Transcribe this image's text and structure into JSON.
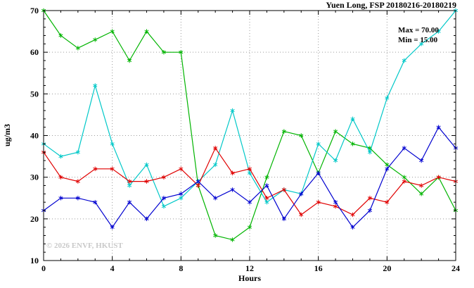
{
  "title": "Yuen Long, FSP 20180216-20180219",
  "annotation": {
    "max_label": "Max = 70.00",
    "min_label": "Min = 15.00"
  },
  "watermark": "© 2026 ENVF, HKUST",
  "chart_data": {
    "type": "line",
    "title": "Yuen Long, FSP 20180216-20180219",
    "xlabel": "Hours",
    "ylabel": "ug/m3",
    "xlim": [
      0,
      24
    ],
    "ylim": [
      10,
      70
    ],
    "xticks": [
      0,
      4,
      8,
      12,
      16,
      20,
      24
    ],
    "yticks": [
      10,
      20,
      30,
      40,
      50,
      60,
      70
    ],
    "grid": true,
    "legend": "none",
    "max_value": 70.0,
    "min_value": 15.0,
    "x": [
      0,
      1,
      2,
      3,
      4,
      5,
      6,
      7,
      8,
      9,
      10,
      11,
      12,
      13,
      14,
      15,
      16,
      17,
      18,
      19,
      20,
      21,
      22,
      23,
      24
    ],
    "series": [
      {
        "name": "series-green",
        "color": "#00b400",
        "values": [
          70,
          64,
          61,
          63,
          65,
          58,
          65,
          60,
          60,
          28,
          16,
          15,
          18,
          30,
          41,
          40,
          31,
          41,
          38,
          37,
          33,
          30,
          26,
          30,
          22
        ]
      },
      {
        "name": "series-cyan",
        "color": "#00c8c8",
        "values": [
          38,
          35,
          36,
          52,
          38,
          28,
          33,
          23,
          25,
          29,
          33,
          46,
          31,
          24,
          27,
          26,
          38,
          34,
          44,
          36,
          49,
          58,
          62,
          65,
          70
        ]
      },
      {
        "name": "series-red",
        "color": "#e00000",
        "values": [
          36,
          30,
          29,
          32,
          32,
          29,
          29,
          30,
          32,
          28,
          37,
          31,
          32,
          25,
          27,
          21,
          24,
          23,
          21,
          25,
          24,
          29,
          28,
          30,
          29
        ]
      },
      {
        "name": "series-blue",
        "color": "#0000d0",
        "values": [
          22,
          25,
          25,
          24,
          18,
          24,
          20,
          25,
          26,
          29,
          25,
          27,
          24,
          28,
          20,
          26,
          31,
          24,
          18,
          22,
          32,
          37,
          34,
          42,
          37
        ]
      }
    ]
  }
}
